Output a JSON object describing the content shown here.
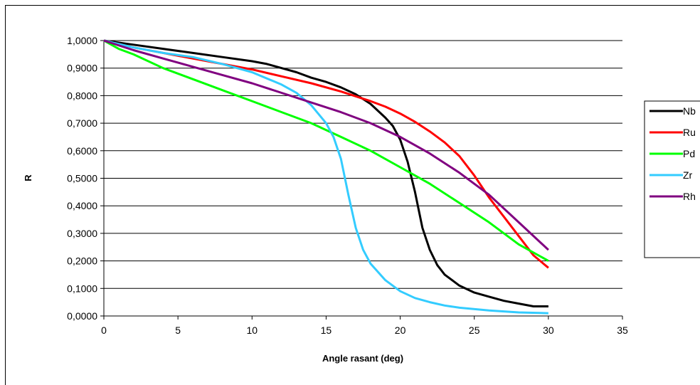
{
  "chart_data": {
    "type": "line",
    "title": "",
    "xlabel": "Angle rasant (deg)",
    "ylabel": "R",
    "xlim": [
      0,
      35
    ],
    "ylim": [
      0,
      1
    ],
    "x_ticks": [
      0,
      5,
      10,
      15,
      20,
      25,
      30,
      35
    ],
    "x_tick_labels": [
      "0",
      "5",
      "10",
      "15",
      "20",
      "25",
      "30",
      "35"
    ],
    "y_ticks": [
      0,
      0.1,
      0.2,
      0.3,
      0.4,
      0.5,
      0.6,
      0.7,
      0.8,
      0.9,
      1.0
    ],
    "y_tick_labels": [
      "0,0000",
      "0,1000",
      "0,2000",
      "0,3000",
      "0,4000",
      "0,5000",
      "0,6000",
      "0,7000",
      "0,8000",
      "0,9000",
      "1,0000"
    ],
    "grid": "horizontal major gridlines",
    "legend_position": "right",
    "series": [
      {
        "name": "Nb",
        "color": "#000000",
        "points": [
          [
            0,
            1.0
          ],
          [
            2,
            0.985
          ],
          [
            4,
            0.97
          ],
          [
            6,
            0.955
          ],
          [
            8,
            0.94
          ],
          [
            10,
            0.925
          ],
          [
            11,
            0.915
          ],
          [
            12,
            0.9
          ],
          [
            13,
            0.885
          ],
          [
            14,
            0.865
          ],
          [
            15,
            0.85
          ],
          [
            16,
            0.83
          ],
          [
            17,
            0.805
          ],
          [
            18,
            0.77
          ],
          [
            19,
            0.72
          ],
          [
            19.5,
            0.69
          ],
          [
            20,
            0.64
          ],
          [
            20.5,
            0.56
          ],
          [
            21,
            0.45
          ],
          [
            21.5,
            0.32
          ],
          [
            22,
            0.24
          ],
          [
            22.5,
            0.185
          ],
          [
            23,
            0.15
          ],
          [
            24,
            0.11
          ],
          [
            25,
            0.085
          ],
          [
            26,
            0.07
          ],
          [
            27,
            0.055
          ],
          [
            28,
            0.045
          ],
          [
            29,
            0.035
          ],
          [
            30,
            0.035
          ]
        ]
      },
      {
        "name": "Ru",
        "color": "#ff0000",
        "points": [
          [
            0,
            1.0
          ],
          [
            2,
            0.975
          ],
          [
            4,
            0.955
          ],
          [
            6,
            0.935
          ],
          [
            8,
            0.915
          ],
          [
            10,
            0.895
          ],
          [
            12,
            0.87
          ],
          [
            14,
            0.845
          ],
          [
            16,
            0.815
          ],
          [
            18,
            0.78
          ],
          [
            19,
            0.76
          ],
          [
            20,
            0.735
          ],
          [
            21,
            0.705
          ],
          [
            22,
            0.67
          ],
          [
            23,
            0.63
          ],
          [
            24,
            0.58
          ],
          [
            25,
            0.51
          ],
          [
            26,
            0.43
          ],
          [
            27,
            0.36
          ],
          [
            28,
            0.29
          ],
          [
            29,
            0.22
          ],
          [
            30,
            0.175
          ]
        ]
      },
      {
        "name": "Pd",
        "color": "#00ff00",
        "points": [
          [
            0,
            1.0
          ],
          [
            1,
            0.97
          ],
          [
            2,
            0.95
          ],
          [
            4,
            0.9
          ],
          [
            6,
            0.86
          ],
          [
            8,
            0.82
          ],
          [
            10,
            0.78
          ],
          [
            12,
            0.74
          ],
          [
            14,
            0.7
          ],
          [
            16,
            0.65
          ],
          [
            18,
            0.6
          ],
          [
            20,
            0.54
          ],
          [
            22,
            0.48
          ],
          [
            24,
            0.41
          ],
          [
            26,
            0.34
          ],
          [
            28,
            0.26
          ],
          [
            30,
            0.2
          ]
        ]
      },
      {
        "name": "Zr",
        "color": "#33ccff",
        "points": [
          [
            0,
            1.0
          ],
          [
            2,
            0.975
          ],
          [
            4,
            0.955
          ],
          [
            6,
            0.94
          ],
          [
            8,
            0.915
          ],
          [
            10,
            0.885
          ],
          [
            12,
            0.84
          ],
          [
            13,
            0.81
          ],
          [
            14,
            0.765
          ],
          [
            15,
            0.7
          ],
          [
            15.5,
            0.65
          ],
          [
            16,
            0.57
          ],
          [
            16.5,
            0.44
          ],
          [
            17,
            0.32
          ],
          [
            17.5,
            0.24
          ],
          [
            18,
            0.19
          ],
          [
            19,
            0.13
          ],
          [
            20,
            0.09
          ],
          [
            21,
            0.065
          ],
          [
            22,
            0.05
          ],
          [
            23,
            0.038
          ],
          [
            24,
            0.03
          ],
          [
            26,
            0.02
          ],
          [
            28,
            0.013
          ],
          [
            30,
            0.01
          ]
        ]
      },
      {
        "name": "Rh",
        "color": "#800080",
        "points": [
          [
            0,
            1.0
          ],
          [
            2,
            0.965
          ],
          [
            4,
            0.935
          ],
          [
            6,
            0.905
          ],
          [
            8,
            0.875
          ],
          [
            10,
            0.845
          ],
          [
            12,
            0.81
          ],
          [
            14,
            0.775
          ],
          [
            16,
            0.74
          ],
          [
            18,
            0.7
          ],
          [
            20,
            0.65
          ],
          [
            22,
            0.59
          ],
          [
            24,
            0.52
          ],
          [
            26,
            0.44
          ],
          [
            28,
            0.34
          ],
          [
            30,
            0.24
          ]
        ]
      }
    ]
  }
}
